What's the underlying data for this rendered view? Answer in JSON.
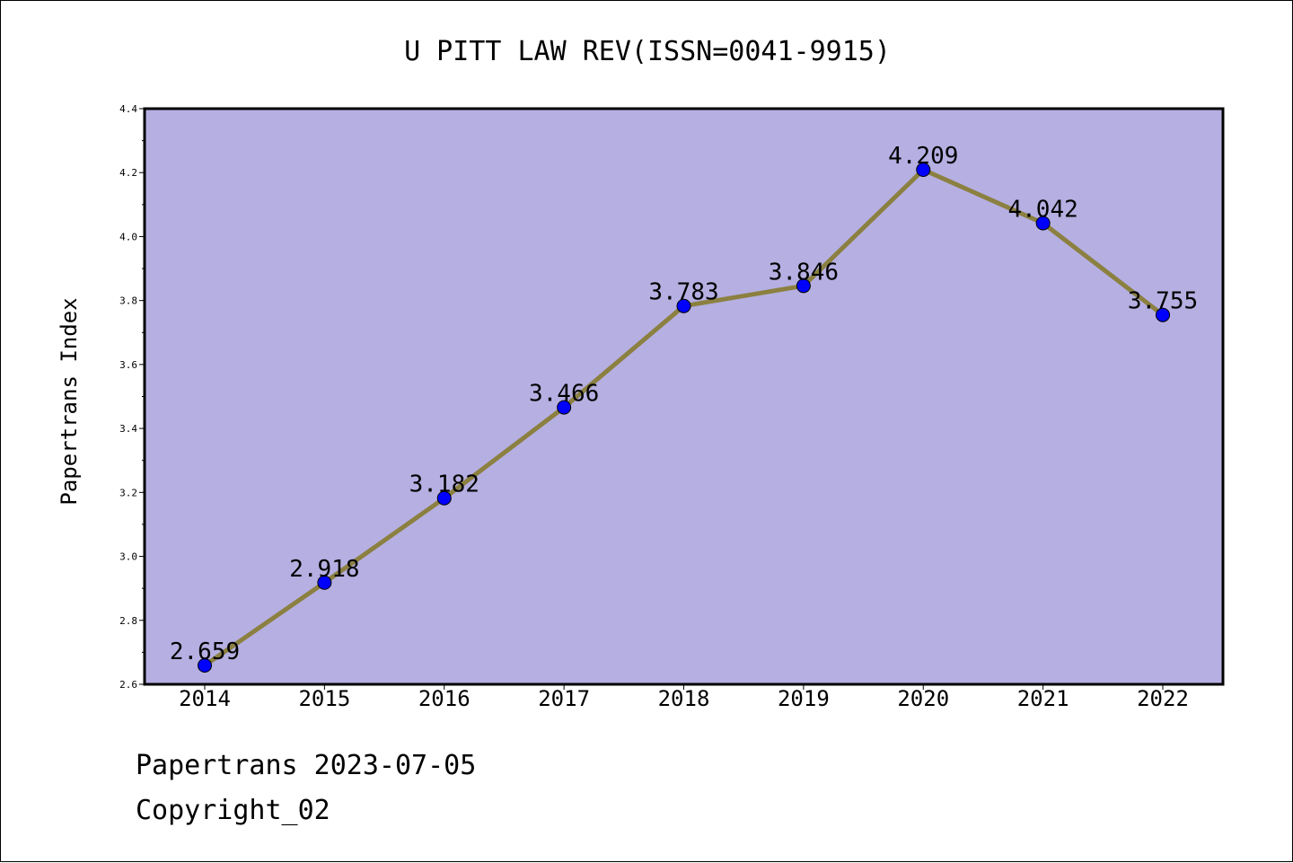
{
  "chart_data": {
    "type": "line",
    "title": "U PITT LAW REV(ISSN=0041-9915)",
    "xlabel": "",
    "ylabel": "Papertrans Index",
    "categories": [
      "2014",
      "2015",
      "2016",
      "2017",
      "2018",
      "2019",
      "2020",
      "2021",
      "2022"
    ],
    "series": [
      {
        "values": [
          2.659,
          2.918,
          3.182,
          3.466,
          3.783,
          3.846,
          4.209,
          4.042,
          3.755
        ],
        "labels": [
          "2.659",
          "2.918",
          "3.182",
          "3.466",
          "3.783",
          "3.846",
          "4.209",
          "4.042",
          "3.755"
        ],
        "line_color": "#8b8040",
        "marker_color": "#0000ff"
      }
    ],
    "ylim": [
      2.6,
      4.4
    ],
    "yticks": [
      "2.6",
      "2.8",
      "3.0",
      "3.2",
      "3.4",
      "3.6",
      "3.8",
      "4.0",
      "4.2",
      "4.4"
    ],
    "grid": false,
    "plot_background": "#b5afe2"
  },
  "footer": {
    "line1": "Papertrans 2023-07-05",
    "line2": "Copyright_02"
  }
}
